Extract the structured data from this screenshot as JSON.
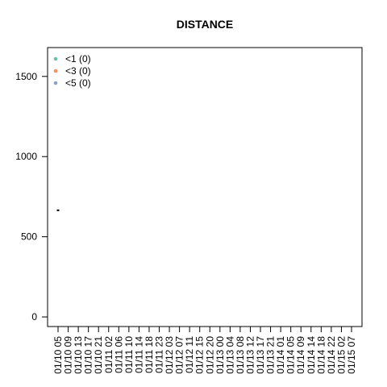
{
  "chart_data": {
    "type": "scatter",
    "title": "DISTANCE",
    "xlabel": "",
    "ylabel": "",
    "categories": [
      "01/10 05",
      "01/10 09",
      "01/10 13",
      "01/10 17",
      "01/10 21",
      "01/11 02",
      "01/11 06",
      "01/11 10",
      "01/11 14",
      "01/11 18",
      "01/11 23",
      "01/12 03",
      "01/12 07",
      "01/12 11",
      "01/12 15",
      "01/12 20",
      "01/13 00",
      "01/13 04",
      "01/13 08",
      "01/13 12",
      "01/13 17",
      "01/13 21",
      "01/14 01",
      "01/14 05",
      "01/14 09",
      "01/14 14",
      "01/14 18",
      "01/14 22",
      "01/15 02",
      "01/15 07"
    ],
    "yticks": [
      0,
      500,
      1000,
      1500
    ],
    "ylim": [
      -60,
      1680
    ],
    "grid": false,
    "legend_position": "top-left",
    "legend": [
      {
        "label": "<1 (0)",
        "color": "#66c2a5"
      },
      {
        "label": "<3 (0)",
        "color": "#fc8d62"
      },
      {
        "label": "<5 (0)",
        "color": "#8da0cb"
      }
    ],
    "series": [
      {
        "marker": "dash",
        "color": "#000000",
        "points": [
          {
            "x": "01/10 05",
            "y": 665
          }
        ]
      }
    ]
  }
}
